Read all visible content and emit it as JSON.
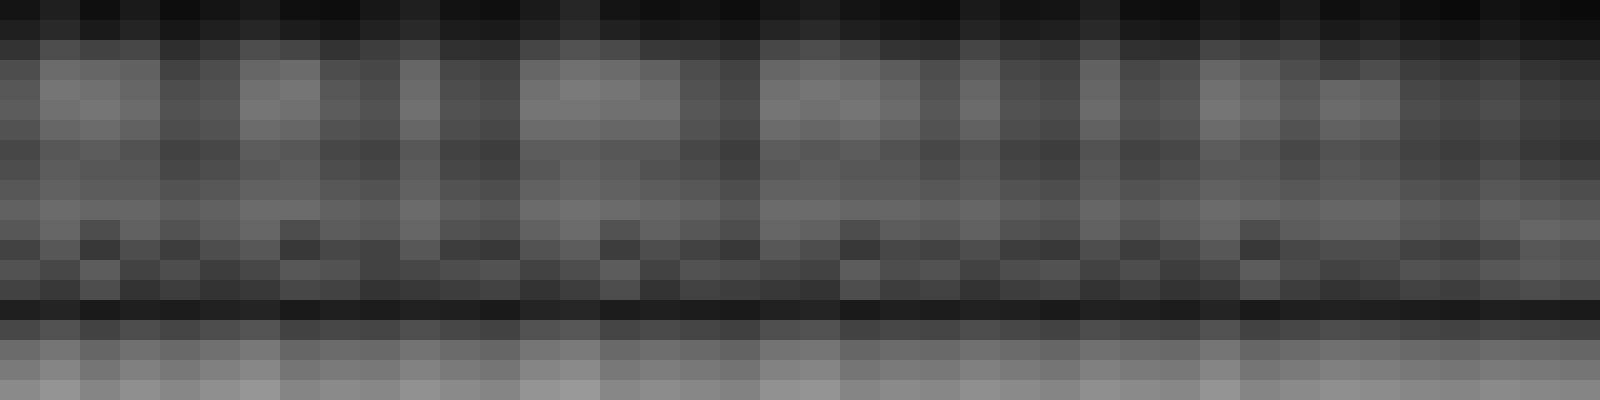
{
  "chart_data": {
    "type": "heatmap",
    "tick_labels": false,
    "colors": [
      "#000000",
      "#ffffff"
    ],
    "zlim": [
      0,
      1
    ],
    "cells": [
      [
        0.08,
        0.12,
        0.06,
        0.1,
        0.05,
        0.08,
        0.1,
        0.06,
        0.05,
        0.09,
        0.12,
        0.07,
        0.06,
        0.1,
        0.15,
        0.08,
        0.06,
        0.07,
        0.05,
        0.09,
        0.11,
        0.08,
        0.06,
        0.05,
        0.1,
        0.07,
        0.08,
        0.12,
        0.06,
        0.05,
        0.09,
        0.07,
        0.1,
        0.06,
        0.08,
        0.05,
        0.04,
        0.07,
        0.05,
        0.04
      ],
      [
        0.12,
        0.16,
        0.1,
        0.14,
        0.09,
        0.12,
        0.15,
        0.11,
        0.09,
        0.13,
        0.16,
        0.11,
        0.1,
        0.14,
        0.18,
        0.13,
        0.1,
        0.11,
        0.09,
        0.14,
        0.16,
        0.12,
        0.1,
        0.09,
        0.14,
        0.11,
        0.12,
        0.16,
        0.1,
        0.09,
        0.13,
        0.11,
        0.14,
        0.1,
        0.12,
        0.09,
        0.08,
        0.1,
        0.08,
        0.07
      ],
      [
        0.2,
        0.3,
        0.26,
        0.28,
        0.18,
        0.22,
        0.3,
        0.27,
        0.2,
        0.24,
        0.28,
        0.19,
        0.18,
        0.27,
        0.32,
        0.29,
        0.22,
        0.21,
        0.18,
        0.28,
        0.3,
        0.26,
        0.2,
        0.19,
        0.27,
        0.22,
        0.2,
        0.28,
        0.19,
        0.18,
        0.27,
        0.24,
        0.26,
        0.18,
        0.2,
        0.16,
        0.14,
        0.16,
        0.13,
        0.12
      ],
      [
        0.3,
        0.42,
        0.4,
        0.38,
        0.26,
        0.3,
        0.4,
        0.42,
        0.3,
        0.28,
        0.4,
        0.28,
        0.26,
        0.4,
        0.44,
        0.42,
        0.38,
        0.3,
        0.26,
        0.4,
        0.42,
        0.4,
        0.36,
        0.3,
        0.36,
        0.28,
        0.26,
        0.38,
        0.28,
        0.3,
        0.4,
        0.36,
        0.3,
        0.26,
        0.3,
        0.24,
        0.22,
        0.24,
        0.2,
        0.18
      ],
      [
        0.34,
        0.46,
        0.44,
        0.4,
        0.3,
        0.32,
        0.44,
        0.46,
        0.34,
        0.3,
        0.42,
        0.3,
        0.28,
        0.44,
        0.48,
        0.46,
        0.42,
        0.32,
        0.28,
        0.44,
        0.46,
        0.44,
        0.4,
        0.32,
        0.4,
        0.3,
        0.28,
        0.4,
        0.3,
        0.32,
        0.44,
        0.4,
        0.34,
        0.4,
        0.38,
        0.28,
        0.26,
        0.28,
        0.24,
        0.22
      ],
      [
        0.36,
        0.44,
        0.46,
        0.42,
        0.32,
        0.34,
        0.46,
        0.44,
        0.36,
        0.32,
        0.44,
        0.32,
        0.3,
        0.46,
        0.46,
        0.44,
        0.44,
        0.34,
        0.3,
        0.46,
        0.44,
        0.46,
        0.42,
        0.34,
        0.42,
        0.32,
        0.3,
        0.42,
        0.32,
        0.34,
        0.46,
        0.42,
        0.36,
        0.42,
        0.4,
        0.3,
        0.28,
        0.3,
        0.26,
        0.24
      ],
      [
        0.32,
        0.4,
        0.42,
        0.38,
        0.3,
        0.32,
        0.42,
        0.4,
        0.32,
        0.3,
        0.4,
        0.3,
        0.28,
        0.42,
        0.42,
        0.4,
        0.4,
        0.32,
        0.28,
        0.42,
        0.4,
        0.42,
        0.38,
        0.32,
        0.38,
        0.3,
        0.28,
        0.38,
        0.3,
        0.32,
        0.42,
        0.38,
        0.32,
        0.38,
        0.36,
        0.28,
        0.26,
        0.28,
        0.24,
        0.22
      ],
      [
        0.28,
        0.34,
        0.36,
        0.32,
        0.26,
        0.28,
        0.36,
        0.34,
        0.28,
        0.26,
        0.34,
        0.26,
        0.24,
        0.36,
        0.36,
        0.34,
        0.34,
        0.28,
        0.24,
        0.36,
        0.34,
        0.36,
        0.32,
        0.28,
        0.32,
        0.26,
        0.24,
        0.32,
        0.26,
        0.28,
        0.36,
        0.32,
        0.28,
        0.32,
        0.3,
        0.26,
        0.24,
        0.26,
        0.22,
        0.2
      ],
      [
        0.3,
        0.36,
        0.34,
        0.34,
        0.28,
        0.3,
        0.34,
        0.36,
        0.3,
        0.28,
        0.36,
        0.28,
        0.26,
        0.34,
        0.38,
        0.36,
        0.32,
        0.3,
        0.26,
        0.34,
        0.36,
        0.34,
        0.34,
        0.3,
        0.34,
        0.28,
        0.26,
        0.34,
        0.28,
        0.3,
        0.34,
        0.34,
        0.3,
        0.34,
        0.32,
        0.28,
        0.26,
        0.3,
        0.26,
        0.24
      ],
      [
        0.34,
        0.38,
        0.36,
        0.36,
        0.32,
        0.34,
        0.38,
        0.38,
        0.34,
        0.32,
        0.38,
        0.32,
        0.3,
        0.38,
        0.4,
        0.38,
        0.36,
        0.34,
        0.3,
        0.38,
        0.38,
        0.36,
        0.36,
        0.34,
        0.36,
        0.32,
        0.3,
        0.36,
        0.32,
        0.34,
        0.38,
        0.36,
        0.34,
        0.36,
        0.36,
        0.32,
        0.3,
        0.34,
        0.32,
        0.3
      ],
      [
        0.38,
        0.42,
        0.4,
        0.4,
        0.36,
        0.38,
        0.42,
        0.42,
        0.38,
        0.36,
        0.42,
        0.36,
        0.34,
        0.42,
        0.44,
        0.42,
        0.4,
        0.38,
        0.34,
        0.42,
        0.42,
        0.4,
        0.4,
        0.38,
        0.4,
        0.36,
        0.34,
        0.4,
        0.36,
        0.38,
        0.42,
        0.4,
        0.38,
        0.4,
        0.4,
        0.36,
        0.34,
        0.38,
        0.36,
        0.34
      ],
      [
        0.34,
        0.4,
        0.3,
        0.38,
        0.32,
        0.36,
        0.4,
        0.3,
        0.36,
        0.34,
        0.4,
        0.32,
        0.3,
        0.38,
        0.42,
        0.32,
        0.38,
        0.34,
        0.3,
        0.4,
        0.38,
        0.3,
        0.36,
        0.34,
        0.38,
        0.32,
        0.3,
        0.38,
        0.32,
        0.36,
        0.4,
        0.3,
        0.36,
        0.38,
        0.38,
        0.34,
        0.32,
        0.36,
        0.4,
        0.38
      ],
      [
        0.26,
        0.34,
        0.22,
        0.3,
        0.24,
        0.3,
        0.34,
        0.22,
        0.28,
        0.26,
        0.34,
        0.24,
        0.22,
        0.32,
        0.36,
        0.24,
        0.3,
        0.26,
        0.22,
        0.34,
        0.3,
        0.22,
        0.28,
        0.26,
        0.3,
        0.24,
        0.22,
        0.3,
        0.24,
        0.28,
        0.34,
        0.22,
        0.28,
        0.3,
        0.3,
        0.26,
        0.24,
        0.28,
        0.34,
        0.32
      ],
      [
        0.32,
        0.28,
        0.36,
        0.26,
        0.3,
        0.24,
        0.28,
        0.34,
        0.32,
        0.26,
        0.28,
        0.3,
        0.32,
        0.26,
        0.3,
        0.36,
        0.26,
        0.32,
        0.3,
        0.28,
        0.26,
        0.36,
        0.3,
        0.32,
        0.26,
        0.3,
        0.32,
        0.26,
        0.3,
        0.24,
        0.28,
        0.36,
        0.3,
        0.26,
        0.28,
        0.32,
        0.3,
        0.34,
        0.36,
        0.34
      ],
      [
        0.26,
        0.22,
        0.3,
        0.2,
        0.24,
        0.2,
        0.22,
        0.28,
        0.26,
        0.2,
        0.22,
        0.24,
        0.26,
        0.2,
        0.24,
        0.3,
        0.2,
        0.26,
        0.24,
        0.22,
        0.2,
        0.3,
        0.24,
        0.26,
        0.2,
        0.24,
        0.26,
        0.2,
        0.24,
        0.2,
        0.22,
        0.3,
        0.24,
        0.2,
        0.22,
        0.26,
        0.24,
        0.28,
        0.3,
        0.28
      ],
      [
        0.12,
        0.14,
        0.1,
        0.12,
        0.11,
        0.13,
        0.14,
        0.1,
        0.12,
        0.11,
        0.13,
        0.12,
        0.1,
        0.14,
        0.15,
        0.11,
        0.12,
        0.11,
        0.1,
        0.13,
        0.14,
        0.1,
        0.12,
        0.11,
        0.13,
        0.12,
        0.1,
        0.13,
        0.12,
        0.11,
        0.14,
        0.1,
        0.12,
        0.13,
        0.12,
        0.11,
        0.1,
        0.12,
        0.11,
        0.1
      ],
      [
        0.28,
        0.32,
        0.26,
        0.3,
        0.27,
        0.3,
        0.33,
        0.26,
        0.28,
        0.27,
        0.31,
        0.28,
        0.26,
        0.32,
        0.34,
        0.27,
        0.29,
        0.27,
        0.25,
        0.31,
        0.32,
        0.26,
        0.28,
        0.27,
        0.3,
        0.28,
        0.26,
        0.3,
        0.28,
        0.27,
        0.32,
        0.26,
        0.28,
        0.3,
        0.29,
        0.27,
        0.26,
        0.28,
        0.27,
        0.26
      ],
      [
        0.42,
        0.46,
        0.4,
        0.44,
        0.41,
        0.44,
        0.47,
        0.4,
        0.42,
        0.41,
        0.45,
        0.42,
        0.4,
        0.46,
        0.48,
        0.41,
        0.43,
        0.41,
        0.39,
        0.45,
        0.46,
        0.4,
        0.42,
        0.41,
        0.44,
        0.42,
        0.4,
        0.44,
        0.42,
        0.41,
        0.46,
        0.4,
        0.42,
        0.44,
        0.43,
        0.41,
        0.4,
        0.42,
        0.41,
        0.4
      ],
      [
        0.48,
        0.52,
        0.46,
        0.5,
        0.47,
        0.5,
        0.53,
        0.46,
        0.48,
        0.47,
        0.51,
        0.48,
        0.46,
        0.52,
        0.54,
        0.47,
        0.49,
        0.47,
        0.45,
        0.51,
        0.52,
        0.46,
        0.48,
        0.47,
        0.5,
        0.48,
        0.46,
        0.5,
        0.48,
        0.47,
        0.52,
        0.46,
        0.48,
        0.5,
        0.49,
        0.47,
        0.46,
        0.48,
        0.47,
        0.46
      ],
      [
        0.54,
        0.58,
        0.52,
        0.56,
        0.53,
        0.56,
        0.59,
        0.52,
        0.54,
        0.53,
        0.57,
        0.54,
        0.52,
        0.58,
        0.6,
        0.53,
        0.55,
        0.53,
        0.51,
        0.57,
        0.58,
        0.52,
        0.54,
        0.53,
        0.56,
        0.54,
        0.52,
        0.56,
        0.54,
        0.53,
        0.58,
        0.52,
        0.54,
        0.56,
        0.55,
        0.53,
        0.52,
        0.54,
        0.53,
        0.52
      ]
    ]
  }
}
